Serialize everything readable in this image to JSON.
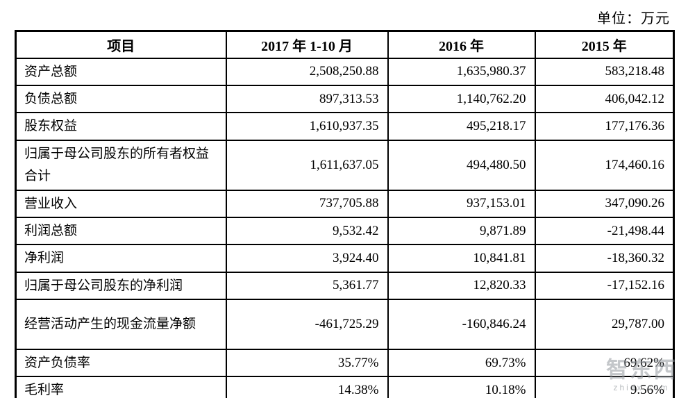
{
  "unit_label": "单位：万元",
  "table": {
    "headers": {
      "item": "项目",
      "period_2017": "2017 年 1-10 月",
      "year_2016": "2016 年",
      "year_2015": "2015 年"
    },
    "rows": [
      {
        "label": "资产总额",
        "values": [
          "2,508,250.88",
          "1,635,980.37",
          "583,218.48"
        ]
      },
      {
        "label": "负债总额",
        "values": [
          "897,313.53",
          "1,140,762.20",
          "406,042.12"
        ]
      },
      {
        "label": "股东权益",
        "values": [
          "1,610,937.35",
          "495,218.17",
          "177,176.36"
        ]
      },
      {
        "label": "归属于母公司股东的所有者权益合计",
        "values": [
          "1,611,637.05",
          "494,480.50",
          "174,460.16"
        ]
      },
      {
        "label": "营业收入",
        "values": [
          "737,705.88",
          "937,153.01",
          "347,090.26"
        ]
      },
      {
        "label": "利润总额",
        "values": [
          "9,532.42",
          "9,871.89",
          "-21,498.44"
        ]
      },
      {
        "label": "净利润",
        "values": [
          "3,924.40",
          "10,841.81",
          "-18,360.32"
        ]
      },
      {
        "label": "归属于母公司股东的净利润",
        "values": [
          "5,361.77",
          "12,820.33",
          "-17,152.16"
        ]
      },
      {
        "label": "经营活动产生的现金流量净额",
        "values": [
          "-461,725.29",
          "-160,846.24",
          "29,787.00"
        ]
      },
      {
        "label": "资产负债率",
        "values": [
          "35.77%",
          "69.73%",
          "69.62%"
        ]
      },
      {
        "label": "毛利率",
        "values": [
          "14.38%",
          "10.18%",
          "9.56%"
        ]
      }
    ]
  },
  "watermark": {
    "logo_text": "智东西",
    "domain_text": "zhidx.com"
  },
  "colors": {
    "border": "#000000",
    "text": "#000000",
    "background": "#ffffff",
    "watermark": "#94999e"
  }
}
